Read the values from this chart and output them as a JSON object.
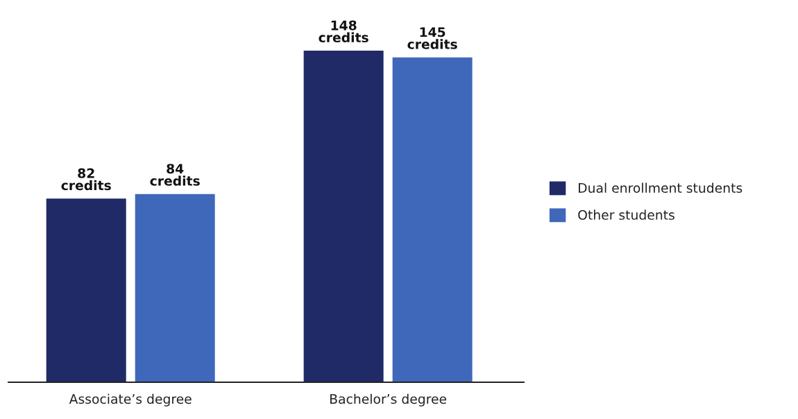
{
  "chart_data": {
    "type": "bar",
    "categories": [
      "Associate’s degree",
      "Bachelor’s degree"
    ],
    "series": [
      {
        "name": "Dual enrollment students",
        "color": "#1f2a66",
        "values": [
          82,
          148
        ],
        "value_labels": [
          "82\ncredits",
          "148\ncredits"
        ]
      },
      {
        "name": "Other students",
        "color": "#3f68bb",
        "values": [
          84,
          145
        ],
        "value_labels": [
          "84\ncredits",
          "145\ncredits"
        ]
      }
    ],
    "legend": "right"
  }
}
